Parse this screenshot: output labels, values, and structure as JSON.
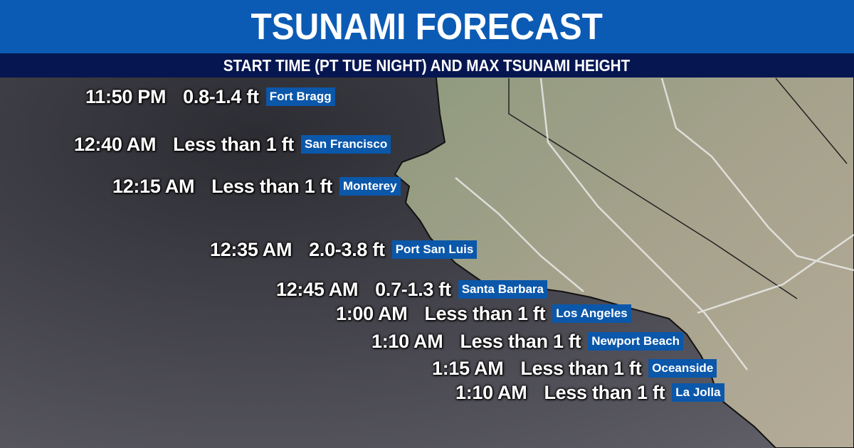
{
  "header": {
    "title": "TSUNAMI FORECAST",
    "subtitle": "START TIME (PT TUE NIGHT) AND MAX TSUNAMI HEIGHT"
  },
  "colors": {
    "header_blue": "#0b5bb5",
    "subheader_navy": "#061650",
    "label_blue": "#0b57aa",
    "ocean": "#3a3a42",
    "land": "#9a9a80"
  },
  "locations": [
    {
      "time": "11:50 PM",
      "height": "0.8-1.4 ft",
      "name": "Fort Bragg"
    },
    {
      "time": "12:40 AM",
      "height": "Less than 1 ft",
      "name": "San Francisco"
    },
    {
      "time": "12:15 AM",
      "height": "Less than 1 ft",
      "name": "Monterey"
    },
    {
      "time": "12:35 AM",
      "height": "2.0-3.8 ft",
      "name": "Port San Luis"
    },
    {
      "time": "12:45 AM",
      "height": "0.7-1.3 ft",
      "name": "Santa Barbara"
    },
    {
      "time": "1:00 AM",
      "height": "Less than 1 ft",
      "name": "Los Angeles"
    },
    {
      "time": "1:10 AM",
      "height": "Less than 1 ft",
      "name": "Newport Beach"
    },
    {
      "time": "1:15 AM",
      "height": "Less than 1 ft",
      "name": "Oceanside"
    },
    {
      "time": "1:10 AM",
      "height": "Less than 1 ft",
      "name": "La Jolla"
    }
  ]
}
